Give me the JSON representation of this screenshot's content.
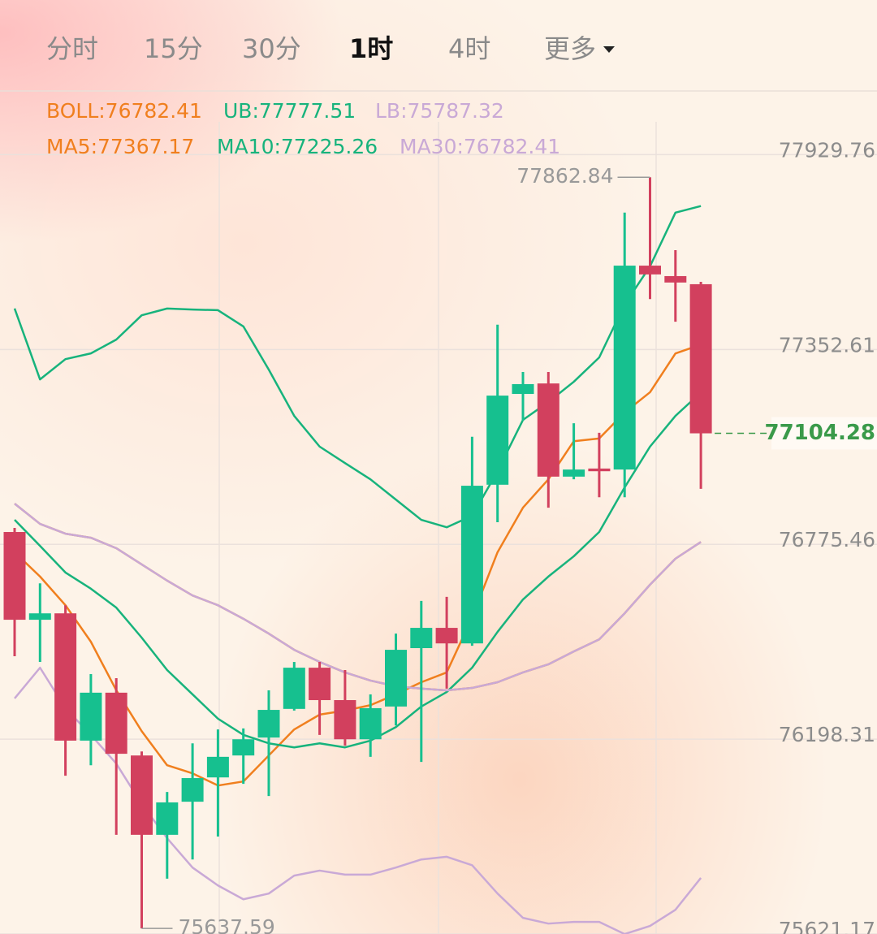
{
  "tabs": [
    "分时",
    "15分",
    "30分",
    "1时",
    "4时",
    "更多"
  ],
  "active_tab": 3,
  "chart_data": {
    "type": "candlestick",
    "up_color": "#16c08f",
    "down_color": "#d2405e",
    "open": [
      76812,
      76552,
      76571,
      76194,
      76336,
      76150,
      75915,
      76013,
      76085,
      76150,
      76203,
      76288,
      76410,
      76314,
      76198,
      76295,
      76468,
      76528,
      76482,
      76952,
      77221,
      77252,
      76976,
      77000,
      76997,
      77601,
      77570,
      77546
    ],
    "high": [
      76824,
      76660,
      76595,
      76391,
      76379,
      76162,
      76042,
      76186,
      76227,
      76230,
      76343,
      76427,
      76427,
      76403,
      76331,
      76511,
      76608,
      76620,
      77094,
      77426,
      77286,
      77286,
      77134,
      77106,
      77758,
      77862.84,
      77647,
      77553
    ],
    "low": [
      76444,
      76427,
      76090,
      76121,
      75915,
      75637.59,
      75785,
      75842,
      75910,
      76066,
      76030,
      76283,
      76211,
      76179,
      76146,
      76239,
      76131,
      76348,
      76475,
      76841,
      77142,
      76884,
      76968,
      76915,
      76915,
      77502,
      77435,
      76940
    ],
    "close": [
      76552,
      76571,
      76194,
      76336,
      76155,
      75915,
      76011,
      76083,
      76146,
      76198,
      76285,
      76410,
      76314,
      76198,
      76290,
      76463,
      76528,
      76482,
      76949,
      77216,
      77250,
      76976,
      76997,
      76992,
      77601,
      77575,
      77551,
      77104.28
    ],
    "series": [
      {
        "name": "BOLL:76782.41",
        "color": "#f07f1e",
        "values": [
          76896,
          76836,
          76807,
          76795,
          76764,
          76716,
          76668,
          76624,
          76595,
          76555,
          76511,
          76463,
          76427,
          76396,
          76372,
          76355,
          76348,
          76343,
          76350,
          76367,
          76396,
          76420,
          76458,
          76494,
          76571,
          76656,
          76733,
          76782.41
        ]
      },
      {
        "name": "UB:77777.51",
        "color": "#17b37c",
        "values": [
          77474,
          77264,
          77324,
          77341,
          77382,
          77454,
          77474,
          77471,
          77469,
          77421,
          77293,
          77156,
          77065,
          77016,
          76968,
          76908,
          76848,
          76826,
          76860,
          76992,
          77144,
          77197,
          77257,
          77329,
          77486,
          77599,
          77758,
          77777.51
        ]
      },
      {
        "name": "LB:75787.32",
        "color": "#c9a9d6",
        "values": [
          76319,
          76410,
          76290,
          76211,
          76126,
          76006,
          75905,
          75818,
          75765,
          75724,
          75741,
          75794,
          75809,
          75797,
          75797,
          75818,
          75842,
          75850,
          75825,
          75741,
          75669,
          75652,
          75657,
          75657,
          75621,
          75645,
          75693,
          75787.32
        ]
      },
      {
        "name": "MA5:77367.17",
        "color": "#f07f1e",
        "values": [
          76752,
          76680,
          76595,
          76487,
          76343,
          76222,
          76121,
          76097,
          76061,
          76073,
          76150,
          76227,
          76271,
          76283,
          76299,
          76331,
          76367,
          76396,
          76559,
          76752,
          76884,
          76968,
          77081,
          77089,
          77166,
          77226,
          77341,
          77367.17
        ]
      },
      {
        "name": "MA10:77225.26",
        "color": "#17b37c",
        "values": [
          76848,
          76771,
          76692,
          76644,
          76588,
          76499,
          76403,
          76331,
          76259,
          76211,
          76186,
          76174,
          76186,
          76174,
          76194,
          76234,
          76295,
          76338,
          76410,
          76516,
          76612,
          76680,
          76740,
          76812,
          76944,
          77065,
          77156,
          77225.26
        ]
      },
      {
        "name": "MA30:76782.41",
        "color": "#c9a9d6",
        "values": [
          76896,
          76836,
          76807,
          76795,
          76764,
          76716,
          76668,
          76624,
          76595,
          76555,
          76511,
          76463,
          76427,
          76396,
          76372,
          76355,
          76348,
          76343,
          76350,
          76367,
          76396,
          76420,
          76458,
          76494,
          76571,
          76656,
          76733,
          76782.41
        ]
      }
    ],
    "ylim": [
      75621.17,
      78027
    ],
    "yticks": [
      77929.76,
      77352.61,
      76775.46,
      76198.31,
      75621.17
    ],
    "grid": true
  }
}
